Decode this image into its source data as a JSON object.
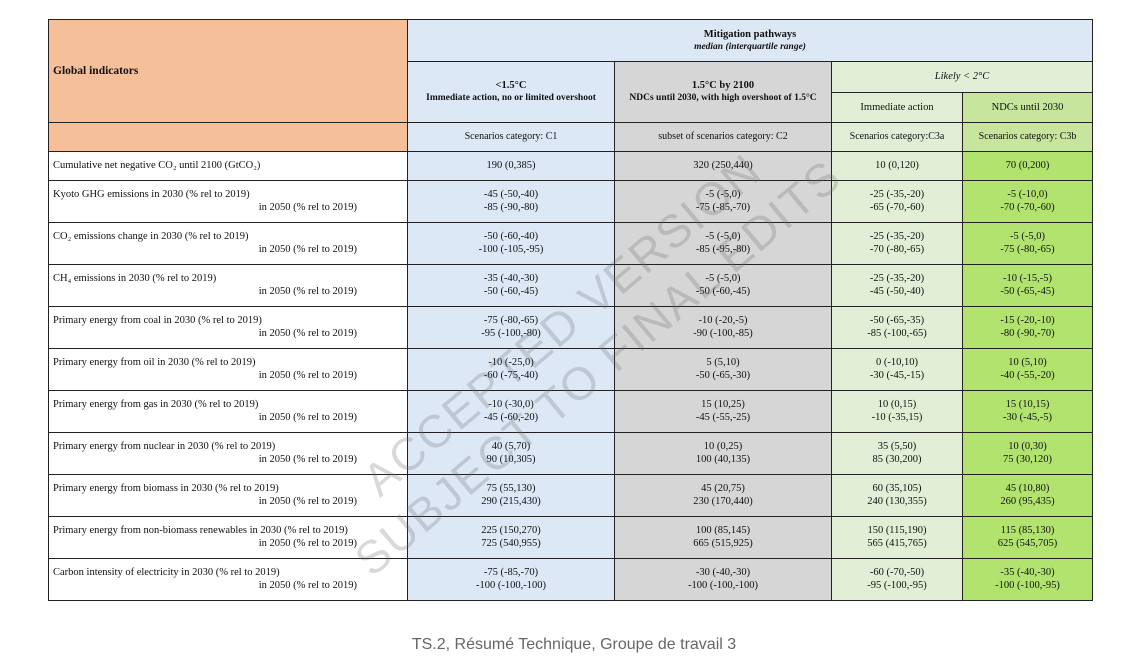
{
  "header": {
    "global_indicators": "Global indicators",
    "mitigation_title": "Mitigation pathways",
    "mitigation_sub": "median (interquartile range)",
    "c1_title": "<1.5°C",
    "c1_desc": "Immediate action, no or limited overshoot",
    "c2_title": "1.5°C by 2100",
    "c2_desc": "NDCs until 2030, with high overshoot of 1.5°C",
    "c3_title": "Likely < 2°C",
    "c3a_desc": "Immediate action",
    "c3b_desc": "NDCs until 2030",
    "scen_c1": "Scenarios category: C1",
    "scen_c2": "subset of scenarios category: C2",
    "scen_c3a": "Scenarios category:C3a",
    "scen_c3b": "Scenarios category: C3b"
  },
  "rows": [
    {
      "l1": "Cumulative net negative CO₂ until 2100 (GtCO₂)",
      "l2": "",
      "c1": [
        "190 (0,385)"
      ],
      "c2": [
        "320 (250,440)"
      ],
      "c3a": [
        "10 (0,120)"
      ],
      "c3b": [
        "70 (0,200)"
      ]
    },
    {
      "l1": "Kyoto GHG emissions in 2030 (% rel to 2019)",
      "l2": "in 2050 (% rel to 2019)",
      "c1": [
        "-45 (-50,-40)",
        "-85 (-90,-80)"
      ],
      "c2": [
        "-5 (-5,0)",
        "-75 (-85,-70)"
      ],
      "c3a": [
        "-25 (-35,-20)",
        "-65 (-70,-60)"
      ],
      "c3b": [
        "-5 (-10,0)",
        "-70 (-70,-60)"
      ]
    },
    {
      "l1": "CO₂ emissions change in 2030 (% rel to 2019)",
      "l2": "in 2050 (% rel to 2019)",
      "c1": [
        "-50 (-60,-40)",
        "-100 (-105,-95)"
      ],
      "c2": [
        "-5 (-5,0)",
        "-85 (-95,-80)"
      ],
      "c3a": [
        "-25 (-35,-20)",
        "-70 (-80,-65)"
      ],
      "c3b": [
        "-5 (-5,0)",
        "-75 (-80,-65)"
      ]
    },
    {
      "l1": "CH₄ emissions in 2030 (% rel to 2019)",
      "l2": "in 2050 (% rel to 2019)",
      "c1": [
        "-35 (-40,-30)",
        "-50 (-60,-45)"
      ],
      "c2": [
        "-5 (-5,0)",
        "-50 (-60,-45)"
      ],
      "c3a": [
        "-25 (-35,-20)",
        "-45 (-50,-40)"
      ],
      "c3b": [
        "-10 (-15,-5)",
        "-50 (-65,-45)"
      ]
    },
    {
      "l1": "Primary energy from coal in 2030 (% rel to 2019)",
      "l2": "in 2050 (% rel to 2019)",
      "c1": [
        "-75 (-80,-65)",
        "-95 (-100,-80)"
      ],
      "c2": [
        "-10 (-20,-5)",
        "-90 (-100,-85)"
      ],
      "c3a": [
        "-50 (-65,-35)",
        "-85 (-100,-65)"
      ],
      "c3b": [
        "-15 (-20,-10)",
        "-80 (-90,-70)"
      ]
    },
    {
      "l1": "Primary energy from oil in 2030 (% rel to 2019)",
      "l2": "in 2050 (% rel to 2019)",
      "c1": [
        "-10 (-25,0)",
        "-60 (-75,-40)"
      ],
      "c2": [
        "5 (5,10)",
        "-50 (-65,-30)"
      ],
      "c3a": [
        "0 (-10,10)",
        "-30 (-45,-15)"
      ],
      "c3b": [
        "10 (5,10)",
        "-40 (-55,-20)"
      ]
    },
    {
      "l1": "Primary energy from gas in 2030 (% rel to 2019)",
      "l2": "in 2050 (% rel to 2019)",
      "c1": [
        "-10 (-30,0)",
        "-45 (-60,-20)"
      ],
      "c2": [
        "15 (10,25)",
        "-45 (-55,-25)"
      ],
      "c3a": [
        "10 (0,15)",
        "-10 (-35,15)"
      ],
      "c3b": [
        "15 (10,15)",
        "-30 (-45,-5)"
      ]
    },
    {
      "l1": "Primary energy from nuclear in 2030 (% rel to 2019)",
      "l2": "in 2050 (% rel to 2019)",
      "c1": [
        "40 (5,70)",
        "90 (10,305)"
      ],
      "c2": [
        "10 (0,25)",
        "100 (40,135)"
      ],
      "c3a": [
        "35 (5,50)",
        "85 (30,200)"
      ],
      "c3b": [
        "10 (0,30)",
        "75 (30,120)"
      ]
    },
    {
      "l1": "Primary energy from biomass in 2030 (% rel to 2019)",
      "l2": "in 2050 (% rel to 2019)",
      "c1": [
        "75 (55,130)",
        "290 (215,430)"
      ],
      "c2": [
        "45 (20,75)",
        "230 (170,440)"
      ],
      "c3a": [
        "60 (35,105)",
        "240 (130,355)"
      ],
      "c3b": [
        "45 (10,80)",
        "260 (95,435)"
      ]
    },
    {
      "l1": "Primary energy from non-biomass renewables in 2030 (% rel to 2019)",
      "l2": "in 2050 (% rel to 2019)",
      "c1": [
        "225 (150,270)",
        "725 (540,955)"
      ],
      "c2": [
        "100 (85,145)",
        "665 (515,925)"
      ],
      "c3a": [
        "150 (115,190)",
        "565 (415,765)"
      ],
      "c3b": [
        "115 (85,130)",
        "625 (545,705)"
      ]
    },
    {
      "l1": "Carbon intensity of electricity in 2030 (% rel to 2019)",
      "l2": "in 2050 (% rel to 2019)",
      "c1": [
        "-75 (-85,-70)",
        "-100 (-100,-100)"
      ],
      "c2": [
        "-30 (-40,-30)",
        "-100 (-100,-100)"
      ],
      "c3a": [
        "-60 (-70,-50)",
        "-95 (-100,-95)"
      ],
      "c3b": [
        "-35 (-40,-30)",
        "-100 (-100,-95)"
      ]
    }
  ],
  "watermark": {
    "line1": "ACCEPTED VERSION",
    "line2": "SUBJECT TO FINAL EDITS"
  },
  "caption": "TS.2, Résumé Technique, Groupe de travail 3"
}
